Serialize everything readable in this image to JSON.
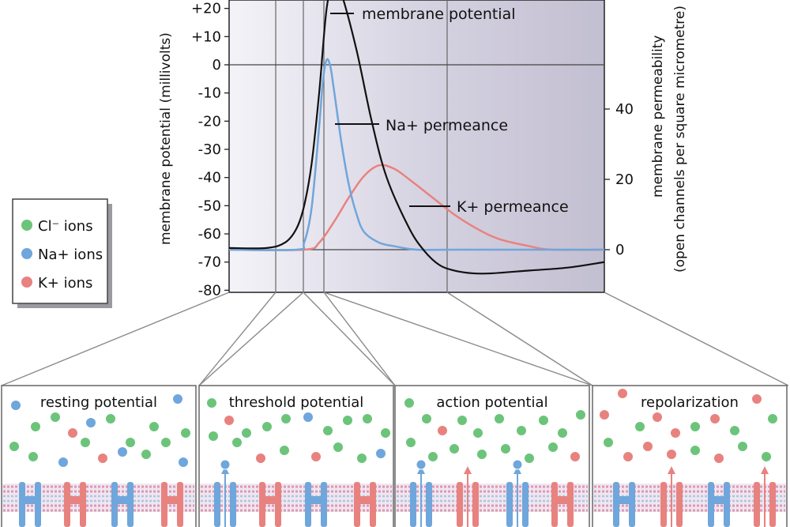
{
  "chart_data": {
    "type": "line",
    "title": "",
    "ylabel_left": "membrane potential (millivolts)",
    "ylabel_right_1": "membrane permeability",
    "ylabel_right_2": "(open channels per square micrometre)",
    "y_left_ticks": [
      "+20",
      "+10",
      "0",
      "-10",
      "-20",
      "-30",
      "-40",
      "-50",
      "-60",
      "-70",
      "-80"
    ],
    "y_left_values": [
      20,
      10,
      0,
      -10,
      -20,
      -30,
      -40,
      -50,
      -60,
      -70,
      -80
    ],
    "y_right_ticks": [
      "40",
      "20",
      "0"
    ],
    "y_right_values": [
      40,
      20,
      0
    ],
    "annotations": {
      "membrane_potential": "membrane potential",
      "na_permeance": "Na+ permeance",
      "k_permeance": "K+ permeance"
    },
    "series": [
      {
        "name": "membrane potential",
        "color": "#111111",
        "t": [
          0,
          10,
          15,
          18,
          20,
          22,
          24,
          26,
          28,
          30,
          34,
          38,
          42,
          48,
          52,
          56,
          60,
          65,
          70,
          80,
          90,
          100
        ],
        "mV": [
          -65,
          -65,
          -63,
          -58,
          -50,
          -35,
          -10,
          20,
          30,
          25,
          5,
          -20,
          -40,
          -58,
          -66,
          -71,
          -73,
          -74,
          -74,
          -73,
          -72,
          -70
        ]
      },
      {
        "name": "Na+ permeance",
        "color": "#6fa6db",
        "t": [
          0,
          18,
          20,
          22,
          24,
          25,
          26,
          27,
          28,
          30,
          32,
          34,
          36,
          40,
          44,
          50,
          60,
          100
        ],
        "permeability": [
          0,
          0,
          2,
          12,
          35,
          48,
          54,
          52,
          45,
          30,
          18,
          10,
          5,
          2,
          1,
          0,
          0,
          0
        ]
      },
      {
        "name": "K+ permeance",
        "color": "#e8827f",
        "t": [
          0,
          20,
          24,
          28,
          32,
          36,
          40,
          44,
          48,
          54,
          60,
          66,
          72,
          80,
          86,
          100
        ],
        "permeability": [
          0,
          0,
          2,
          8,
          15,
          21,
          24,
          23,
          20,
          15,
          10,
          6,
          3,
          1,
          0,
          0
        ]
      }
    ],
    "legend": [
      "Cl⁻ ions",
      "Na+ ions",
      "K+ ions"
    ],
    "legend_colors": [
      "#6cc47a",
      "#6fa6db",
      "#e8827f"
    ]
  },
  "panels": [
    {
      "title": "resting potential"
    },
    {
      "title": "threshold potential"
    },
    {
      "title": "action potential"
    },
    {
      "title": "repolarization"
    }
  ],
  "colors": {
    "plot_bg": "#c9c6d6",
    "na": "#6fa6db",
    "k": "#e8827f",
    "cl": "#6cc47a",
    "membrane_potential": "#111111"
  }
}
